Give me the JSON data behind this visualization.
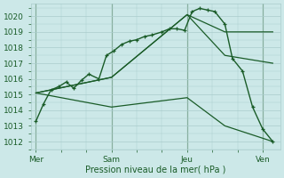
{
  "bg_color": "#cce8e8",
  "grid_color": "#aacccc",
  "line_color": "#1a5c28",
  "xlabel": "Pression niveau de la mer( hPa )",
  "ylim": [
    1011.5,
    1020.8
  ],
  "xlim": [
    -0.2,
    9.7
  ],
  "xtick_labels": [
    "Mer",
    "Sam",
    "Jeu",
    "Ven"
  ],
  "xtick_positions": [
    0,
    3,
    6,
    9
  ],
  "yticks": [
    1012,
    1013,
    1014,
    1015,
    1016,
    1017,
    1018,
    1019,
    1020
  ],
  "series": [
    {
      "x": [
        0.0,
        0.3,
        0.6,
        0.9,
        1.2,
        1.5,
        1.8,
        2.1,
        2.5,
        2.8,
        3.1,
        3.4,
        3.7,
        4.0,
        4.3,
        4.6,
        5.0,
        5.3,
        5.6,
        5.9,
        6.2,
        6.5,
        6.8,
        7.1,
        7.5,
        7.8,
        8.2,
        8.6,
        9.0,
        9.4
      ],
      "y": [
        1013.3,
        1014.4,
        1015.3,
        1015.5,
        1015.8,
        1015.4,
        1015.9,
        1016.3,
        1016.0,
        1017.5,
        1017.8,
        1018.2,
        1018.4,
        1018.5,
        1018.7,
        1018.8,
        1019.0,
        1019.2,
        1019.2,
        1019.1,
        1020.3,
        1020.5,
        1020.4,
        1020.3,
        1019.5,
        1017.3,
        1016.5,
        1014.2,
        1012.8,
        1012.0
      ],
      "lw": 1.0,
      "marker": "+",
      "ms": 3.5
    },
    {
      "x": [
        0.0,
        3.0,
        6.0,
        7.5,
        9.4
      ],
      "y": [
        1015.1,
        1016.1,
        1020.1,
        1019.0,
        1019.0
      ],
      "lw": 0.9,
      "marker": null,
      "ms": 0
    },
    {
      "x": [
        0.0,
        3.0,
        6.0,
        7.5,
        9.4
      ],
      "y": [
        1015.1,
        1016.1,
        1020.1,
        1017.5,
        1017.0
      ],
      "lw": 0.9,
      "marker": null,
      "ms": 0
    },
    {
      "x": [
        0.0,
        3.0,
        6.0,
        7.5,
        9.4
      ],
      "y": [
        1015.1,
        1014.2,
        1014.8,
        1013.0,
        1012.0
      ],
      "lw": 0.9,
      "marker": null,
      "ms": 0
    }
  ]
}
